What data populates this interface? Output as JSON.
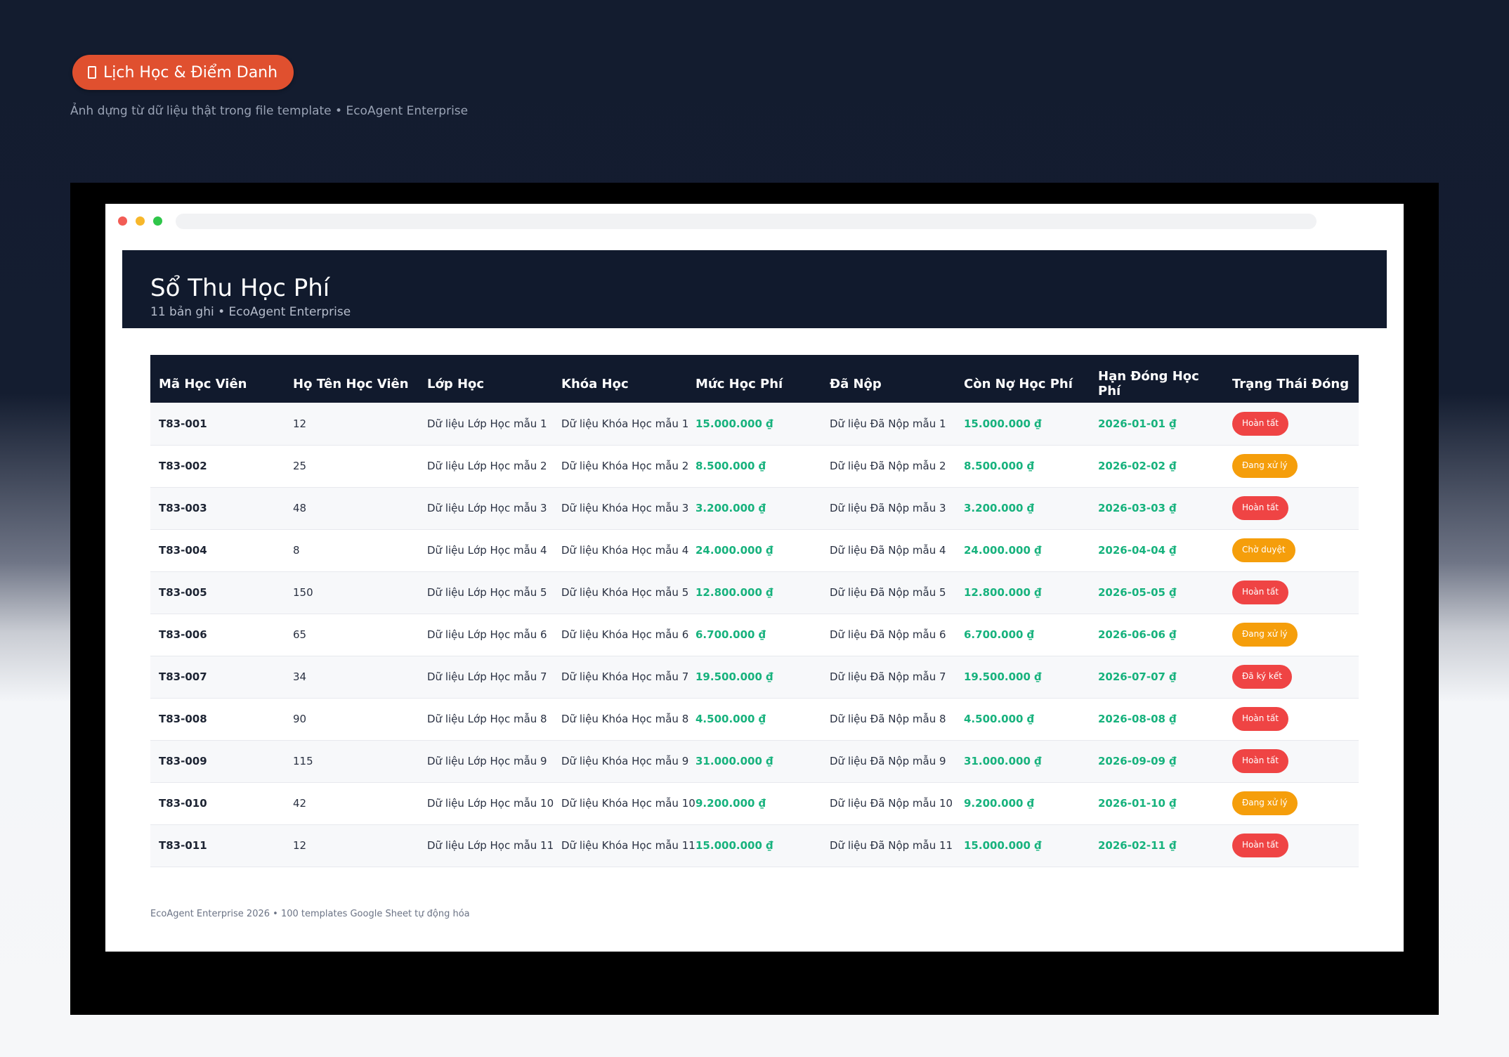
{
  "hero": {
    "badge_label": "Lịch Học & Điểm Danh",
    "subtitle": "Ảnh dựng từ dữ liệu thật trong file template • EcoAgent Enterprise"
  },
  "sheet": {
    "title": "Sổ Thu Học Phí",
    "subtitle": "11 bản ghi • EcoAgent Enterprise",
    "columns": [
      "Mã Học Viên",
      "Họ Tên Học Viên",
      "Lớp Học",
      "Khóa Học",
      "Mức Học Phí",
      "Đã Nộp",
      "Còn Nợ Học Phí",
      "Hạn Đóng Học Phí",
      "Trạng Thái Đóng"
    ],
    "rows": [
      {
        "id": "T83-001",
        "name": "12",
        "class": "Dữ liệu Lớp Học mẫu 1",
        "course": "Dữ liệu Khóa Học mẫu 1",
        "fee": "15.000.000 ₫",
        "paid": "Dữ liệu Đã Nộp mẫu 1",
        "debt": "15.000.000 ₫",
        "due": "2026-01-01 ₫",
        "status": "Hoàn tất",
        "status_color": "red"
      },
      {
        "id": "T83-002",
        "name": "25",
        "class": "Dữ liệu Lớp Học mẫu 2",
        "course": "Dữ liệu Khóa Học mẫu 2",
        "fee": "8.500.000 ₫",
        "paid": "Dữ liệu Đã Nộp mẫu 2",
        "debt": "8.500.000 ₫",
        "due": "2026-02-02 ₫",
        "status": "Đang xử lý",
        "status_color": "orange"
      },
      {
        "id": "T83-003",
        "name": "48",
        "class": "Dữ liệu Lớp Học mẫu 3",
        "course": "Dữ liệu Khóa Học mẫu 3",
        "fee": "3.200.000 ₫",
        "paid": "Dữ liệu Đã Nộp mẫu 3",
        "debt": "3.200.000 ₫",
        "due": "2026-03-03 ₫",
        "status": "Hoàn tất",
        "status_color": "red"
      },
      {
        "id": "T83-004",
        "name": "8",
        "class": "Dữ liệu Lớp Học mẫu 4",
        "course": "Dữ liệu Khóa Học mẫu 4",
        "fee": "24.000.000 ₫",
        "paid": "Dữ liệu Đã Nộp mẫu 4",
        "debt": "24.000.000 ₫",
        "due": "2026-04-04 ₫",
        "status": "Chờ duyệt",
        "status_color": "orange"
      },
      {
        "id": "T83-005",
        "name": "150",
        "class": "Dữ liệu Lớp Học mẫu 5",
        "course": "Dữ liệu Khóa Học mẫu 5",
        "fee": "12.800.000 ₫",
        "paid": "Dữ liệu Đã Nộp mẫu 5",
        "debt": "12.800.000 ₫",
        "due": "2026-05-05 ₫",
        "status": "Hoàn tất",
        "status_color": "red"
      },
      {
        "id": "T83-006",
        "name": "65",
        "class": "Dữ liệu Lớp Học mẫu 6",
        "course": "Dữ liệu Khóa Học mẫu 6",
        "fee": "6.700.000 ₫",
        "paid": "Dữ liệu Đã Nộp mẫu 6",
        "debt": "6.700.000 ₫",
        "due": "2026-06-06 ₫",
        "status": "Đang xử lý",
        "status_color": "orange"
      },
      {
        "id": "T83-007",
        "name": "34",
        "class": "Dữ liệu Lớp Học mẫu 7",
        "course": "Dữ liệu Khóa Học mẫu 7",
        "fee": "19.500.000 ₫",
        "paid": "Dữ liệu Đã Nộp mẫu 7",
        "debt": "19.500.000 ₫",
        "due": "2026-07-07 ₫",
        "status": "Đã ký kết",
        "status_color": "red"
      },
      {
        "id": "T83-008",
        "name": "90",
        "class": "Dữ liệu Lớp Học mẫu 8",
        "course": "Dữ liệu Khóa Học mẫu 8",
        "fee": "4.500.000 ₫",
        "paid": "Dữ liệu Đã Nộp mẫu 8",
        "debt": "4.500.000 ₫",
        "due": "2026-08-08 ₫",
        "status": "Hoàn tất",
        "status_color": "red"
      },
      {
        "id": "T83-009",
        "name": "115",
        "class": "Dữ liệu Lớp Học mẫu 9",
        "course": "Dữ liệu Khóa Học mẫu 9",
        "fee": "31.000.000 ₫",
        "paid": "Dữ liệu Đã Nộp mẫu 9",
        "debt": "31.000.000 ₫",
        "due": "2026-09-09 ₫",
        "status": "Hoàn tất",
        "status_color": "red"
      },
      {
        "id": "T83-010",
        "name": "42",
        "class": "Dữ liệu Lớp Học mẫu 10",
        "course": "Dữ liệu Khóa Học mẫu 10",
        "fee": "9.200.000 ₫",
        "paid": "Dữ liệu Đã Nộp mẫu 10",
        "debt": "9.200.000 ₫",
        "due": "2026-01-10 ₫",
        "status": "Đang xử lý",
        "status_color": "orange"
      },
      {
        "id": "T83-011",
        "name": "12",
        "class": "Dữ liệu Lớp Học mẫu 11",
        "course": "Dữ liệu Khóa Học mẫu 11",
        "fee": "15.000.000 ₫",
        "paid": "Dữ liệu Đã Nộp mẫu 11",
        "debt": "15.000.000 ₫",
        "due": "2026-02-11 ₫",
        "status": "Hoàn tất",
        "status_color": "red"
      }
    ]
  },
  "footer": {
    "note": "EcoAgent Enterprise 2026 • 100 templates Google Sheet tự động hóa"
  },
  "colors": {
    "accent": "#e0502f",
    "header_bg": "#111a2d",
    "money_green": "#17b27d",
    "status_red": "#ef4444",
    "status_orange": "#f59e0b"
  },
  "icons": {
    "hero_badge": "calendar-icon"
  }
}
